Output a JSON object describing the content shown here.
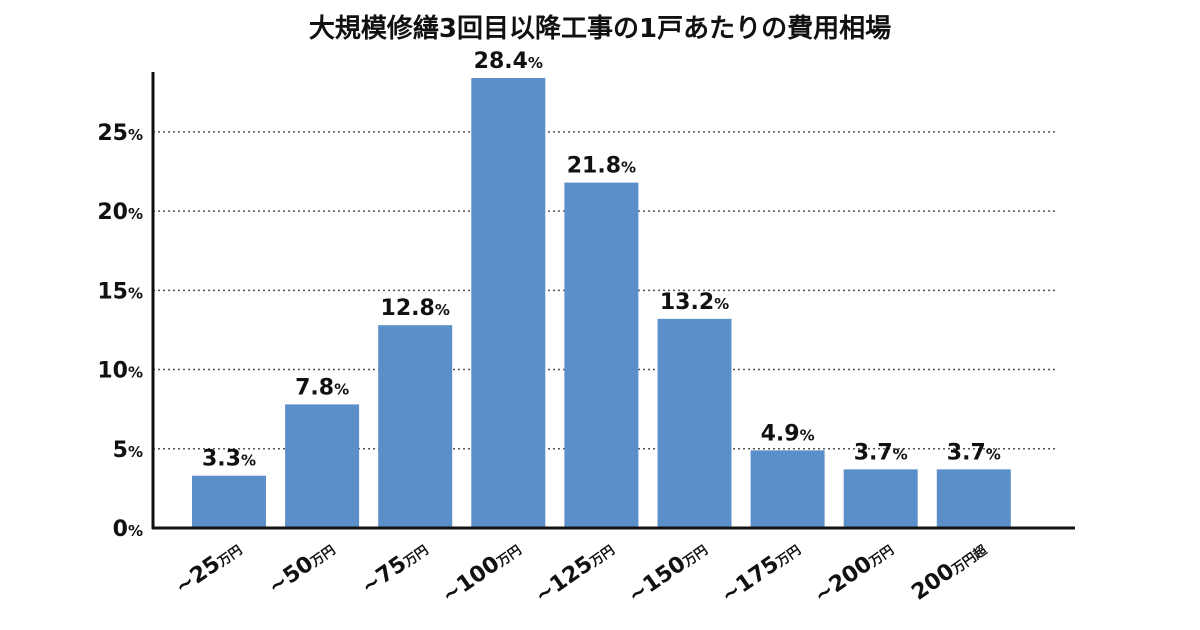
{
  "chart_data": {
    "type": "bar",
    "title": "大規模修繕3回目以降工事の1戸あたりの費用相場",
    "categories": [
      {
        "main": "~25",
        "unit": "万円"
      },
      {
        "main": "~50",
        "unit": "万円"
      },
      {
        "main": "~75",
        "unit": "万円"
      },
      {
        "main": "~100",
        "unit": "万円"
      },
      {
        "main": "~125",
        "unit": "万円"
      },
      {
        "main": "~150",
        "unit": "万円"
      },
      {
        "main": "~175",
        "unit": "万円"
      },
      {
        "main": "~200",
        "unit": "万円"
      },
      {
        "main": "200",
        "unit": "万円超"
      }
    ],
    "values": [
      3.3,
      7.8,
      12.8,
      28.4,
      21.8,
      13.2,
      4.9,
      3.7,
      3.7
    ],
    "data_labels": [
      "3.3",
      "7.8",
      "12.8",
      "28.4",
      "21.8",
      "13.2",
      "4.9",
      "3.7",
      "3.7"
    ],
    "value_suffix": "%",
    "ylim": [
      0,
      28.4
    ],
    "yticks": [
      0,
      5,
      10,
      15,
      20,
      25
    ],
    "ytick_suffix": "%",
    "grid": "horizontal dotted",
    "xlabel": "",
    "ylabel": "",
    "bar_color": "#5b8fc9"
  }
}
